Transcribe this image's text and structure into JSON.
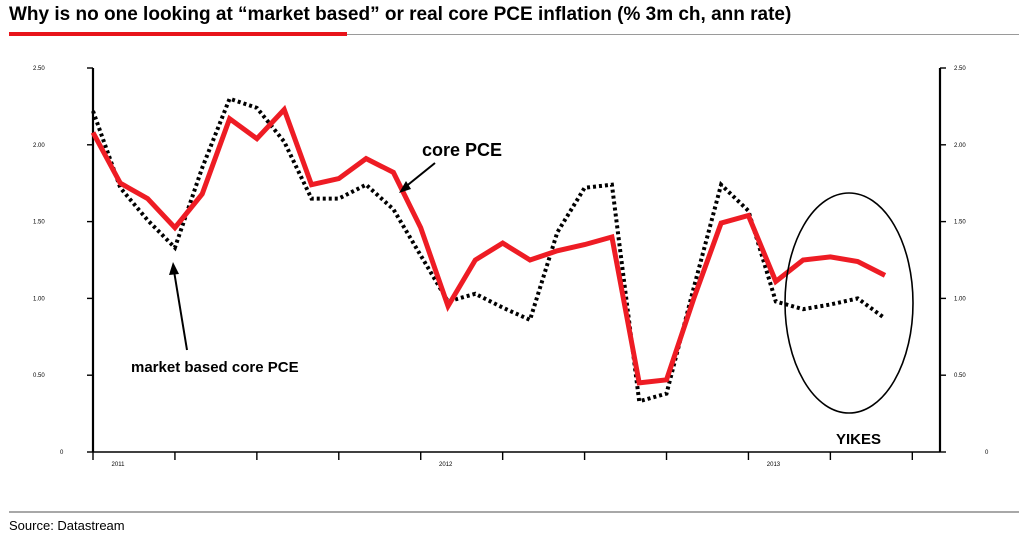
{
  "title": "Why is no one looking at “market based” or real core PCE inflation (% 3m ch, ann rate)",
  "source": "Source: Datastream",
  "colors": {
    "core_pce": "#ee1c24",
    "market_based": "#000000",
    "accent": "#e8141a"
  },
  "chart_data": {
    "type": "line",
    "title": "Why is no one looking at “market based” or real core PCE inflation (% 3m ch, ann rate)",
    "xlabel": "",
    "ylabel": "",
    "ylim": [
      0,
      2.5
    ],
    "y_ticks": [
      "2.50",
      "2.00",
      "1.50",
      "1.00",
      "0.50",
      "0"
    ],
    "y_tick_values": [
      2.5,
      2.0,
      1.5,
      1.0,
      0.5,
      0
    ],
    "x_tick_labels": [
      "2011",
      "2012",
      "2013"
    ],
    "x_tick_index": [
      0,
      12,
      24
    ],
    "x_count": 30,
    "series": [
      {
        "name": "core PCE",
        "style": "solid",
        "values": [
          2.08,
          1.75,
          1.65,
          1.46,
          1.68,
          2.17,
          2.04,
          2.23,
          1.74,
          1.78,
          1.91,
          1.82,
          1.46,
          0.95,
          1.25,
          1.36,
          1.25,
          1.31,
          1.35,
          1.4,
          0.45,
          0.47,
          1.0,
          1.49,
          1.54,
          1.11,
          1.25,
          1.27,
          1.24,
          1.15
        ]
      },
      {
        "name": "market based core PCE",
        "style": "dotted",
        "values": [
          2.22,
          1.72,
          1.51,
          1.33,
          1.85,
          2.3,
          2.24,
          2.02,
          1.65,
          1.65,
          1.74,
          1.58,
          1.28,
          0.98,
          1.03,
          0.94,
          0.86,
          1.43,
          1.72,
          1.74,
          0.33,
          0.38,
          1.07,
          1.74,
          1.57,
          0.98,
          0.93,
          0.96,
          1.0,
          0.87
        ]
      }
    ],
    "annotations": {
      "core_label": "core PCE",
      "market_label": "market based core PCE",
      "yikes": "YIKES"
    }
  }
}
